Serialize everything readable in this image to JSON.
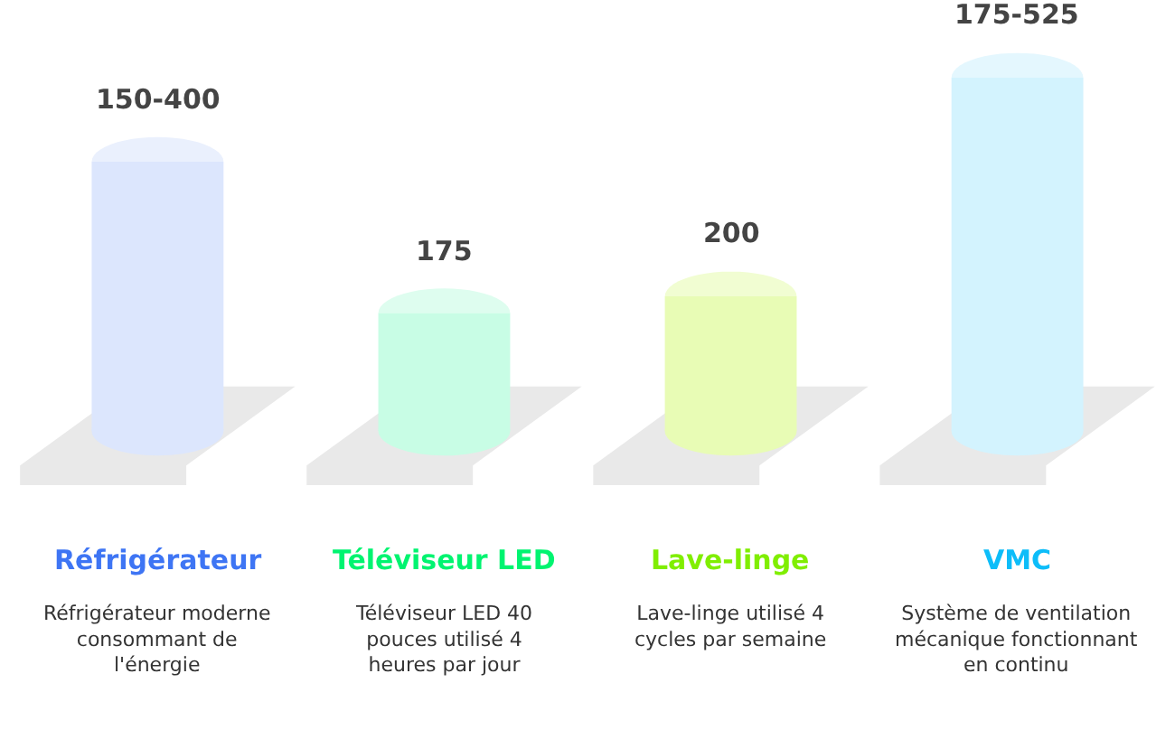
{
  "chart_data": {
    "type": "bar",
    "categories": [
      "Réfrigérateur",
      "Téléviseur LED",
      "Lave-linge",
      "VMC"
    ],
    "values": [
      400,
      175,
      200,
      525
    ],
    "value_labels": [
      "150-400",
      "175",
      "200",
      "175-525"
    ],
    "colors": [
      "#dce6fd",
      "#c8fde5",
      "#e8fcb5",
      "#d3f3fe"
    ],
    "annotations": [
      "Réfrigérateur moderne consommant de l'énergie",
      "Téléviseur LED 40 pouces utilisé 4 heures par jour",
      "Lave-linge utilisé 4 cycles par semaine",
      "Système de ventilation mécanique fonctionnant en continu"
    ]
  }
}
